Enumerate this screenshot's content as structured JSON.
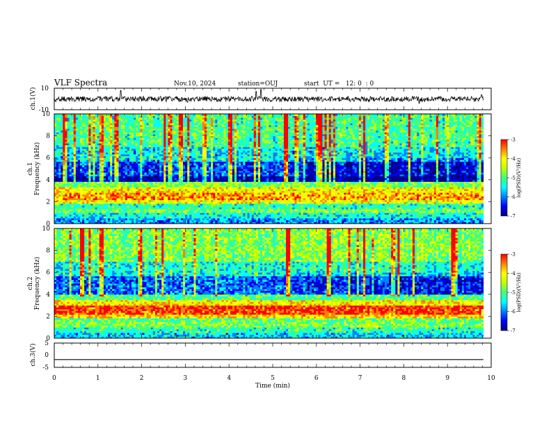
{
  "header": {
    "title": "VLF Spectra",
    "date": "Nov.10, 2024",
    "station": "station=OUJ",
    "start_time": "start  UT =   12: 0  : 0"
  },
  "chart_data": [
    {
      "type": "line",
      "panel": "ch1-waveform",
      "ylabel": "ch.1(V)",
      "ylim": [
        -10,
        10
      ],
      "ytick_labels": [
        "10",
        "-10"
      ],
      "baseline": 0,
      "noise_amplitude": 2.5,
      "spikes": [
        {
          "t": 1.52,
          "v": 8
        },
        {
          "t": 4.62,
          "v": 7
        },
        {
          "t": 4.73,
          "v": 9
        },
        {
          "t": 9.78,
          "v": 4
        },
        {
          "t": 3.05,
          "v": -3
        },
        {
          "t": 8.35,
          "v": -4
        }
      ]
    },
    {
      "type": "heatmap",
      "panel": "ch1-spectrogram",
      "ylabel": "Frequency  (kHz)",
      "channel_label": "ch.1",
      "ylim": [
        0,
        10
      ],
      "yticks": [
        0,
        2,
        4,
        6,
        8,
        10
      ],
      "bands": [
        {
          "f": [
            0.0,
            0.5
          ],
          "level": 0.3
        },
        {
          "f": [
            0.5,
            1.0
          ],
          "level": 0.42
        },
        {
          "f": [
            1.0,
            1.4
          ],
          "level": 0.55
        },
        {
          "f": [
            1.4,
            1.9
          ],
          "level": 0.45
        },
        {
          "f": [
            1.9,
            2.2
          ],
          "level": 0.68
        },
        {
          "f": [
            2.2,
            2.9
          ],
          "level": 0.8
        },
        {
          "f": [
            2.9,
            3.4
          ],
          "level": 0.7
        },
        {
          "f": [
            3.4,
            3.9
          ],
          "level": 0.55
        },
        {
          "f": [
            3.9,
            4.4
          ],
          "level": 0.08
        },
        {
          "f": [
            4.4,
            5.7
          ],
          "level": 0.22
        },
        {
          "f": [
            5.7,
            7.0
          ],
          "level": 0.38
        },
        {
          "f": [
            7.0,
            10.0
          ],
          "level": 0.48
        }
      ],
      "colorbar": {
        "label": "log(PSD)(V²/Hz)",
        "range": [
          -7,
          -3
        ],
        "ticks": [
          "-3",
          "-4",
          "-5",
          "-6",
          "-7"
        ]
      }
    },
    {
      "type": "heatmap",
      "panel": "ch2-spectrogram",
      "ylabel": "Frequency  (kHz)",
      "channel_label": "ch.2",
      "ylim": [
        0,
        10
      ],
      "yticks": [
        0,
        2,
        4,
        6,
        8,
        10
      ],
      "bands": [
        {
          "f": [
            0.0,
            0.5
          ],
          "level": 0.35
        },
        {
          "f": [
            0.5,
            1.0
          ],
          "level": 0.45
        },
        {
          "f": [
            1.0,
            1.5
          ],
          "level": 0.55
        },
        {
          "f": [
            1.5,
            1.9
          ],
          "level": 0.5
        },
        {
          "f": [
            1.9,
            2.2
          ],
          "level": 0.75
        },
        {
          "f": [
            2.2,
            3.0
          ],
          "level": 0.9
        },
        {
          "f": [
            3.0,
            3.5
          ],
          "level": 0.72
        },
        {
          "f": [
            3.5,
            4.0
          ],
          "level": 0.5
        },
        {
          "f": [
            4.0,
            5.7
          ],
          "level": 0.25
        },
        {
          "f": [
            5.7,
            7.0
          ],
          "level": 0.42
        },
        {
          "f": [
            7.0,
            10.0
          ],
          "level": 0.55
        }
      ],
      "colorbar": {
        "label": "log(PSD)(V²/Hz)",
        "range": [
          -7,
          -3
        ],
        "ticks": [
          "-3",
          "-4",
          "-5",
          "-6",
          "-7"
        ]
      }
    },
    {
      "type": "line",
      "panel": "ch3-waveform",
      "ylabel": "ch.3(V)",
      "ylim": [
        -5,
        5
      ],
      "ytick_labels": [
        "5",
        "0",
        "-5"
      ],
      "baseline": -1.8,
      "noise_amplitude": 0
    }
  ],
  "xaxis": {
    "label": "Time  (min)",
    "xlim": [
      0,
      10
    ],
    "ticks": [
      "0",
      "1",
      "2",
      "3",
      "4",
      "5",
      "6",
      "7",
      "8",
      "9",
      "10"
    ],
    "data_end": 9.82
  },
  "colorscale": [
    "#000080",
    "#0000ff",
    "#0080ff",
    "#00ffff",
    "#40ff80",
    "#c0ff00",
    "#ffff00",
    "#ff8000",
    "#ff0000"
  ]
}
